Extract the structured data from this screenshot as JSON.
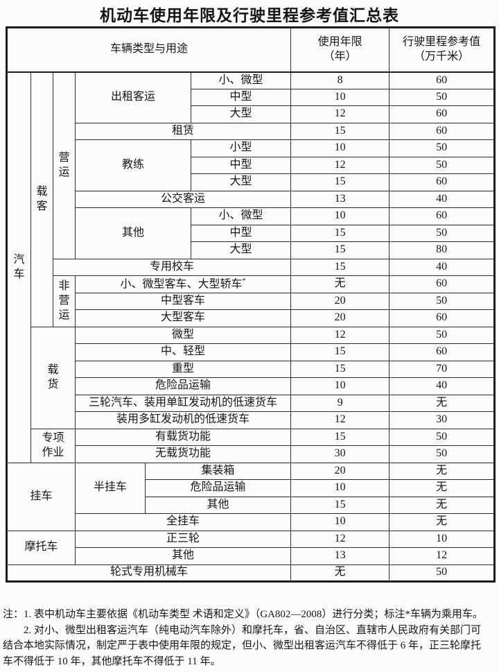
{
  "title": "机动车使用年限及行驶里程参考值汇总表",
  "table": {
    "header": {
      "col_type": "车辆类型与用途",
      "col_years": "使用年限\n（年）",
      "col_mileage": "行驶里程参考值\n（万千米）"
    },
    "rows": [
      {
        "cells": [
          {
            "t": "汽\n车",
            "rs": 23,
            "cls": "v-wide"
          },
          {
            "t": "载\n客",
            "rs": 15,
            "cls": "v-mid"
          },
          {
            "t": "营\n运",
            "rs": 11,
            "cls": "v-norm"
          },
          {
            "t": "出租客运",
            "cs": 2,
            "rs": 3
          },
          {
            "t": "小、微型"
          },
          {
            "t": "8",
            "v": true
          },
          {
            "t": "60",
            "v": true
          }
        ]
      },
      {
        "cells": [
          {
            "t": "中型"
          },
          {
            "t": "10",
            "v": true
          },
          {
            "t": "50",
            "v": true
          }
        ]
      },
      {
        "cells": [
          {
            "t": "大型"
          },
          {
            "t": "12",
            "v": true
          },
          {
            "t": "60",
            "v": true
          }
        ]
      },
      {
        "cells": [
          {
            "t": "租赁",
            "cs": 3
          },
          {
            "t": "15",
            "v": true
          },
          {
            "t": "60",
            "v": true
          }
        ]
      },
      {
        "cells": [
          {
            "t": "教练",
            "cs": 2,
            "rs": 3
          },
          {
            "t": "小型"
          },
          {
            "t": "10",
            "v": true
          },
          {
            "t": "50",
            "v": true
          }
        ]
      },
      {
        "cells": [
          {
            "t": "中型"
          },
          {
            "t": "12",
            "v": true
          },
          {
            "t": "50",
            "v": true
          }
        ]
      },
      {
        "cells": [
          {
            "t": "大型"
          },
          {
            "t": "15",
            "v": true
          },
          {
            "t": "60",
            "v": true
          }
        ]
      },
      {
        "cells": [
          {
            "t": "公交客运",
            "cs": 3
          },
          {
            "t": "13",
            "v": true
          },
          {
            "t": "40",
            "v": true
          }
        ]
      },
      {
        "cells": [
          {
            "t": "其他",
            "cs": 2,
            "rs": 3
          },
          {
            "t": "小、微型"
          },
          {
            "t": "10",
            "v": true
          },
          {
            "t": "60",
            "v": true
          }
        ]
      },
      {
        "cells": [
          {
            "t": "中型"
          },
          {
            "t": "15",
            "v": true
          },
          {
            "t": "50",
            "v": true
          }
        ]
      },
      {
        "cells": [
          {
            "t": "大型"
          },
          {
            "t": "15",
            "v": true
          },
          {
            "t": "80",
            "v": true
          }
        ]
      },
      {
        "cells": [
          {
            "t": "专用校车",
            "cs": 4
          },
          {
            "t": "15",
            "v": true
          },
          {
            "t": "40",
            "v": true
          }
        ]
      },
      {
        "cells": [
          {
            "t": "非\n营\n运",
            "rs": 3,
            "cls": "v-tight"
          },
          {
            "t": "小、微型客车、大型轿车",
            "cs": 3,
            "sup": "*"
          },
          {
            "t": "无",
            "v": true
          },
          {
            "t": "60",
            "v": true
          }
        ]
      },
      {
        "cells": [
          {
            "t": "中型客车",
            "cs": 3
          },
          {
            "t": "20",
            "v": true
          },
          {
            "t": "50",
            "v": true
          }
        ]
      },
      {
        "cells": [
          {
            "t": "大型客车",
            "cs": 3
          },
          {
            "t": "20",
            "v": true
          },
          {
            "t": "60",
            "v": true
          }
        ]
      },
      {
        "cells": [
          {
            "t": "载\n货",
            "cs": 2,
            "rs": 6,
            "cls": "v-norm"
          },
          {
            "t": "微型",
            "cs": 3
          },
          {
            "t": "12",
            "v": true
          },
          {
            "t": "50",
            "v": true
          }
        ]
      },
      {
        "cells": [
          {
            "t": "中、轻型",
            "cs": 3
          },
          {
            "t": "15",
            "v": true
          },
          {
            "t": "60",
            "v": true
          }
        ]
      },
      {
        "cells": [
          {
            "t": "重型",
            "cs": 3
          },
          {
            "t": "15",
            "v": true
          },
          {
            "t": "70",
            "v": true
          }
        ]
      },
      {
        "cells": [
          {
            "t": "危险品运输",
            "cs": 3
          },
          {
            "t": "10",
            "v": true
          },
          {
            "t": "40",
            "v": true
          }
        ]
      },
      {
        "cells": [
          {
            "t": "三轮汽车、装用单缸发动机的低速货车",
            "cs": 3
          },
          {
            "t": "9",
            "v": true
          },
          {
            "t": "无",
            "v": true
          }
        ]
      },
      {
        "cells": [
          {
            "t": "装用多缸发动机的低速货车",
            "cs": 3
          },
          {
            "t": "12",
            "v": true
          },
          {
            "t": "30",
            "v": true
          }
        ]
      },
      {
        "cells": [
          {
            "t": "专项\n作业",
            "cs": 2,
            "rs": 2,
            "cls": "v-tight"
          },
          {
            "t": "有载货功能",
            "cs": 3
          },
          {
            "t": "15",
            "v": true
          },
          {
            "t": "50",
            "v": true
          }
        ]
      },
      {
        "cells": [
          {
            "t": "无载货功能",
            "cs": 3
          },
          {
            "t": "30",
            "v": true
          },
          {
            "t": "50",
            "v": true
          }
        ]
      },
      {
        "cells": [
          {
            "t": "挂车",
            "cs": 3,
            "rs": 4
          },
          {
            "t": "半挂车",
            "rs": 3
          },
          {
            "t": "集装箱",
            "cs": 2
          },
          {
            "t": "20",
            "v": true
          },
          {
            "t": "无",
            "v": true
          }
        ]
      },
      {
        "cells": [
          {
            "t": "危险品运输",
            "cs": 2
          },
          {
            "t": "10",
            "v": true
          },
          {
            "t": "无",
            "v": true
          }
        ]
      },
      {
        "cells": [
          {
            "t": "其他",
            "cs": 2
          },
          {
            "t": "15",
            "v": true
          },
          {
            "t": "无",
            "v": true
          }
        ]
      },
      {
        "cells": [
          {
            "t": "全挂车",
            "cs": 3
          },
          {
            "t": "10",
            "v": true
          },
          {
            "t": "无",
            "v": true
          }
        ]
      },
      {
        "cells": [
          {
            "t": "摩托车",
            "cs": 3,
            "rs": 2
          },
          {
            "t": "正三轮",
            "cs": 3
          },
          {
            "t": "12",
            "v": true
          },
          {
            "t": "10",
            "v": true
          }
        ]
      },
      {
        "cells": [
          {
            "t": "其他",
            "cs": 3
          },
          {
            "t": "13",
            "v": true
          },
          {
            "t": "12",
            "v": true
          }
        ]
      },
      {
        "cells": [
          {
            "t": "轮式专用机械车",
            "cs": 6
          },
          {
            "t": "无",
            "v": true
          },
          {
            "t": "50",
            "v": true
          }
        ]
      }
    ]
  },
  "notes": [
    {
      "text": "注：1. 表中机动车主要依据《机动车类型 术语和定义》（GA802—2008）进行分类；标注*车辆为乘用车。",
      "indent": false
    },
    {
      "text": "2. 对小、微型出租客运汽车（纯电动汽车除外）和摩托车，省、自治区、直辖市人民政府有关部门可",
      "indent": true
    },
    {
      "text": "结合本地实际情况，制定严于表中使用年限的规定，但小、微型出租客运汽车不得低于 6 年，正三轮摩托",
      "indent": false
    },
    {
      "text": "车不得低于 10 年，其他摩托车不得低于 11 年。",
      "indent": false
    }
  ],
  "colors": {
    "text": "#141414",
    "border": "#2b2b2b",
    "background": "#fcfcfa"
  }
}
